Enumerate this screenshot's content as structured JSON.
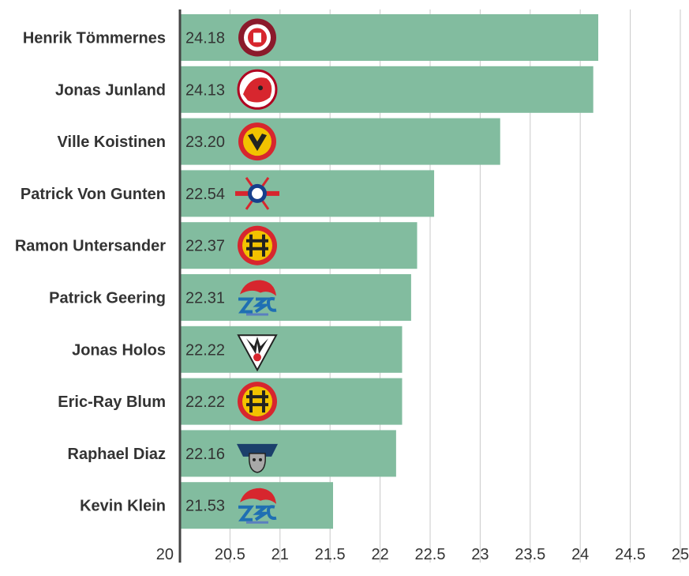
{
  "chart_data": {
    "type": "bar",
    "orientation": "horizontal",
    "categories": [
      "Henrik Tömmernes",
      "Jonas Junland",
      "Ville Koistinen",
      "Patrick Von Gunten",
      "Ramon Untersander",
      "Patrick Geering",
      "Jonas Holos",
      "Eric-Ray Blum",
      "Raphael Diaz",
      "Kevin Klein"
    ],
    "values": [
      24.18,
      24.13,
      23.2,
      22.54,
      22.37,
      22.31,
      22.22,
      22.22,
      22.16,
      21.53
    ],
    "value_labels": [
      "24.18",
      "24.13",
      "23.20",
      "22.54",
      "22.37",
      "22.31",
      "22.22",
      "22.22",
      "22.16",
      "21.53"
    ],
    "team_logos": [
      "geneve-servette-logo",
      "lausanne-lion-logo",
      "scl-tigers-logo",
      "kloten-logo",
      "sc-bern-logo",
      "zsc-lions-logo",
      "fribourg-gotteron-logo",
      "sc-bern-logo",
      "ev-zug-logo",
      "zsc-lions-logo"
    ],
    "xlim": [
      20,
      25
    ],
    "ticks": [
      "20",
      "20.5",
      "21",
      "21.5",
      "22",
      "22.5",
      "23",
      "23.5",
      "24",
      "24.5",
      "25"
    ],
    "tick_values": [
      20,
      20.5,
      21,
      21.5,
      22,
      22.5,
      23,
      23.5,
      24,
      24.5,
      25
    ],
    "grid": true,
    "colors": {
      "bar": "#82bc9f",
      "grid": "#c9c9c9",
      "axis": "#444444",
      "text": "#333333"
    }
  }
}
